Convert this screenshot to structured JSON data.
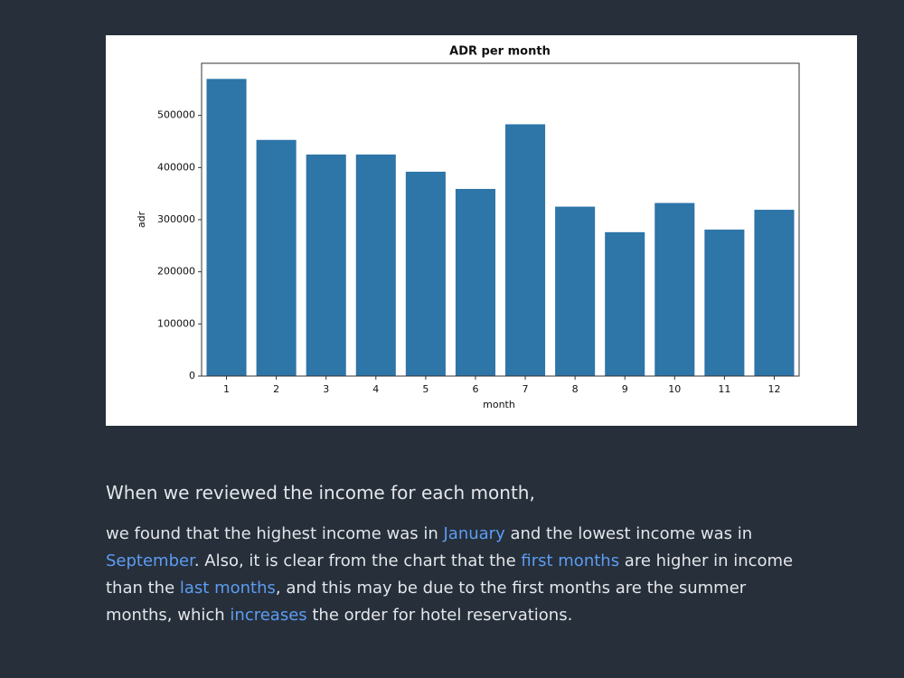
{
  "chart_data": {
    "type": "bar",
    "title": "ADR per month",
    "x_label": "month",
    "y_label": "adr",
    "categories": [
      "1",
      "2",
      "3",
      "4",
      "5",
      "6",
      "7",
      "8",
      "9",
      "10",
      "11",
      "12"
    ],
    "values": [
      570000,
      453000,
      425000,
      425000,
      392000,
      359000,
      483000,
      325000,
      276000,
      332000,
      281000,
      319000
    ],
    "color": "#2e75a8",
    "ylim": [
      0,
      600000
    ],
    "yticks": [
      0,
      100000,
      200000,
      300000,
      400000,
      500000
    ],
    "grid": false
  },
  "text": {
    "heading": "When we reviewed the income for each month,",
    "paragraph": [
      {
        "text": " we found that the highest income was in ",
        "highlight": false
      },
      {
        "text": "January",
        "highlight": true
      },
      {
        "text": " and the lowest income was in ",
        "highlight": false
      },
      {
        "text": "September",
        "highlight": true
      },
      {
        "text": ". Also, it is clear from the chart that the ",
        "highlight": false
      },
      {
        "text": "first months",
        "highlight": true
      },
      {
        "text": " are higher in income than the ",
        "highlight": false
      },
      {
        "text": "last months",
        "highlight": true
      },
      {
        "text": ", and this may be due to the first months are the summer months, which ",
        "highlight": false
      },
      {
        "text": "increases",
        "highlight": true
      },
      {
        "text": " the order for hotel reservations.",
        "highlight": false
      }
    ]
  }
}
